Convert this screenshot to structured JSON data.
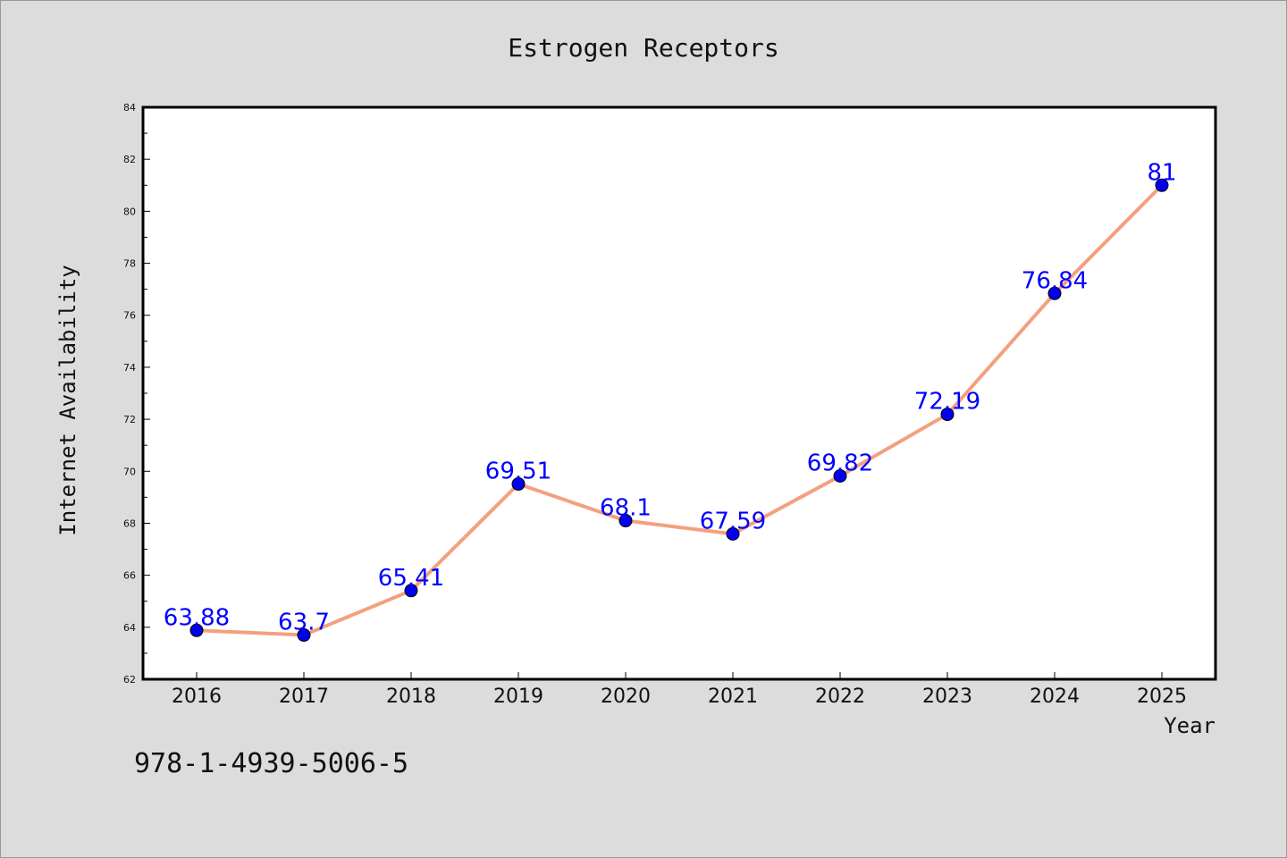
{
  "chart_data": {
    "type": "line",
    "title": "Estrogen Receptors",
    "xlabel": "Year",
    "ylabel": "Internet Availability",
    "x": [
      "2016",
      "2017",
      "2018",
      "2019",
      "2020",
      "2021",
      "2022",
      "2023",
      "2024",
      "2025"
    ],
    "series": [
      {
        "values": [
          63.88,
          63.7,
          65.41,
          69.51,
          68.1,
          67.59,
          69.82,
          72.19,
          76.84,
          81
        ],
        "labels": [
          "63.88",
          "63.7",
          "65.41",
          "69.51",
          "68.1",
          "67.59",
          "69.82",
          "72.19",
          "76.84",
          "81"
        ],
        "line_color": "#f4a07e",
        "marker_color": "#0000ee"
      }
    ],
    "ylim": [
      62,
      84
    ],
    "yticks": [
      "62",
      "64",
      "66",
      "68",
      "70",
      "72",
      "74",
      "76",
      "78",
      "80",
      "82",
      "84"
    ],
    "grid": false,
    "legend": "none"
  },
  "annotation": "978-1-4939-5006-5"
}
